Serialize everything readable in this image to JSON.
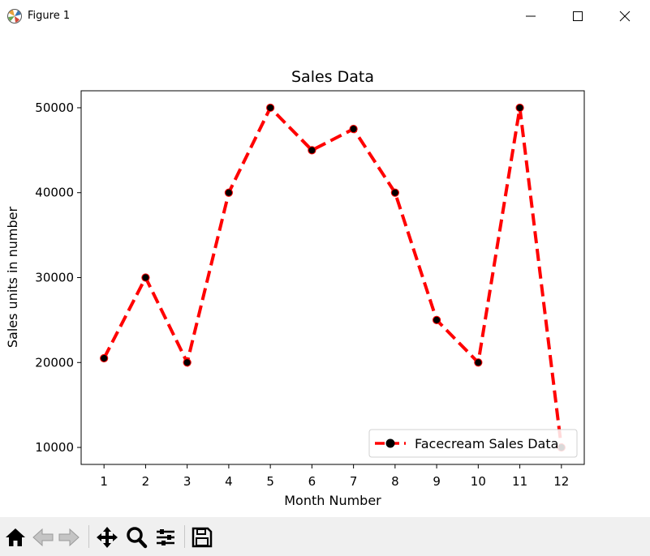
{
  "window": {
    "title": "Figure 1",
    "icons": {
      "app": "matplotlib-icon",
      "minimize": "minimize-icon",
      "maximize": "maximize-icon",
      "close": "close-icon"
    }
  },
  "toolbar": {
    "items": [
      "home-icon",
      "back-arrow-icon",
      "forward-arrow-icon",
      "pan-move-icon",
      "zoom-magnifier-icon",
      "configure-subplots-icon",
      "save-floppy-icon"
    ]
  },
  "chart_data": {
    "type": "line",
    "title": "Sales Data",
    "xlabel": "Month Number",
    "ylabel": "Sales units in number",
    "x": [
      1,
      2,
      3,
      4,
      5,
      6,
      7,
      8,
      9,
      10,
      11,
      12
    ],
    "series": [
      {
        "name": "Facecream Sales Data",
        "values": [
          20500,
          30000,
          20000,
          40000,
          50000,
          45000,
          47500,
          40000,
          25000,
          20000,
          50000,
          10000
        ],
        "color": "#ff0000",
        "line_style": "dashed",
        "marker": "circle",
        "marker_color": "#000000"
      }
    ],
    "xticks": [
      "1",
      "2",
      "3",
      "4",
      "5",
      "6",
      "7",
      "8",
      "9",
      "10",
      "11",
      "12"
    ],
    "yticks": [
      "10000",
      "20000",
      "30000",
      "40000",
      "50000"
    ],
    "xlim": [
      0.45,
      12.55
    ],
    "ylim": [
      8000,
      52000
    ],
    "grid": false,
    "legend_position": "lower right"
  }
}
